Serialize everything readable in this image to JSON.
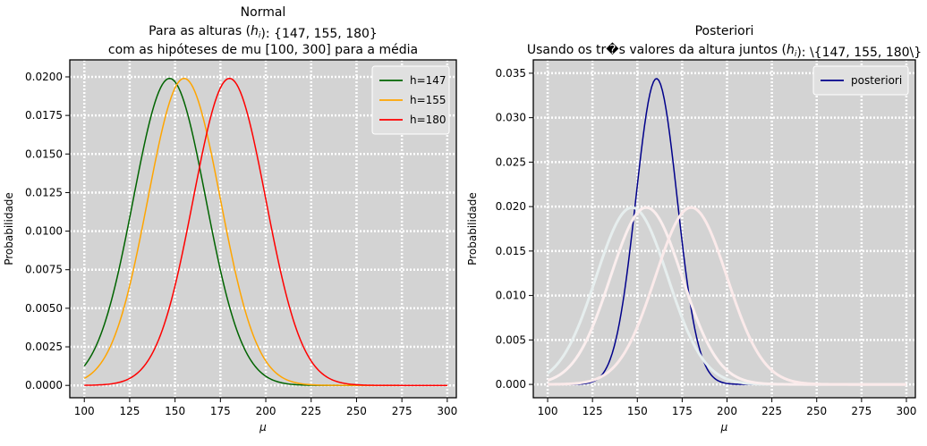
{
  "chart_data": [
    {
      "type": "line",
      "title_lines": [
        "Normal",
        "Para as alturas (h_i): {147, 155, 180}",
        "com as hipóteses de mu [100, 300] para a média"
      ],
      "xlabel": "μ",
      "ylabel": "Probabilidade",
      "xlim": [
        92,
        305
      ],
      "ylim": [
        -0.0008,
        0.0211
      ],
      "xticks": [
        100,
        125,
        150,
        175,
        200,
        225,
        250,
        275,
        300
      ],
      "xtick_labels": [
        "100",
        "125",
        "150",
        "175",
        "200",
        "225",
        "250",
        "275",
        "300"
      ],
      "yticks": [
        0,
        0.0025,
        0.005,
        0.0075,
        0.01,
        0.0125,
        0.015,
        0.0175,
        0.02
      ],
      "ytick_labels": [
        "0.0000",
        "0.0025",
        "0.0050",
        "0.0075",
        "0.0100",
        "0.0125",
        "0.0150",
        "0.0175",
        "0.0200"
      ],
      "grid": true,
      "legend_position": "top-right",
      "series": [
        {
          "name": "h=147",
          "color": "#006400",
          "mu": 147,
          "sigma": 20,
          "peak": 0.0199,
          "x_start": 100,
          "x_end": 300,
          "legend": true
        },
        {
          "name": "h=155",
          "color": "#ffa500",
          "mu": 155,
          "sigma": 20,
          "peak": 0.0199,
          "x_start": 100,
          "x_end": 300,
          "legend": true
        },
        {
          "name": "h=180",
          "color": "#ff0000",
          "mu": 180,
          "sigma": 20,
          "peak": 0.0199,
          "x_start": 100,
          "x_end": 300,
          "legend": true
        }
      ]
    },
    {
      "type": "line",
      "title_lines": [
        "Posteriori",
        "Usando os tr�s valores da altura juntos (h_i): \\{147, 155, 180\\}"
      ],
      "xlabel": "μ",
      "ylabel": "Probabilidade",
      "xlim": [
        92,
        305
      ],
      "ylim": [
        -0.0015,
        0.0365
      ],
      "xticks": [
        100,
        125,
        150,
        175,
        200,
        225,
        250,
        275,
        300
      ],
      "xtick_labels": [
        "100",
        "125",
        "150",
        "175",
        "200",
        "225",
        "250",
        "275",
        "300"
      ],
      "yticks": [
        0,
        0.005,
        0.01,
        0.015,
        0.02,
        0.025,
        0.03,
        0.035
      ],
      "ytick_labels": [
        "0.000",
        "0.005",
        "0.010",
        "0.015",
        "0.020",
        "0.025",
        "0.030",
        "0.035"
      ],
      "grid": true,
      "legend_position": "top-right",
      "series": [
        {
          "name": "posteriori",
          "color": "#00008b",
          "mu": 160.7,
          "sigma": 11.55,
          "peak": 0.0344,
          "x_start": 100,
          "x_end": 300,
          "legend": true
        },
        {
          "name": "",
          "color": "#e6eeee",
          "mu": 147,
          "sigma": 20,
          "peak": 0.0199,
          "x_start": 100,
          "x_end": 300,
          "legend": false,
          "faint": true
        },
        {
          "name": "",
          "color": "#fbeeee",
          "mu": 155,
          "sigma": 20,
          "peak": 0.0199,
          "x_start": 100,
          "x_end": 300,
          "legend": false,
          "faint": true
        },
        {
          "name": "",
          "color": "#fbeaea",
          "mu": 180,
          "sigma": 20,
          "peak": 0.0199,
          "x_start": 100,
          "x_end": 300,
          "legend": false,
          "faint": true
        }
      ]
    }
  ]
}
